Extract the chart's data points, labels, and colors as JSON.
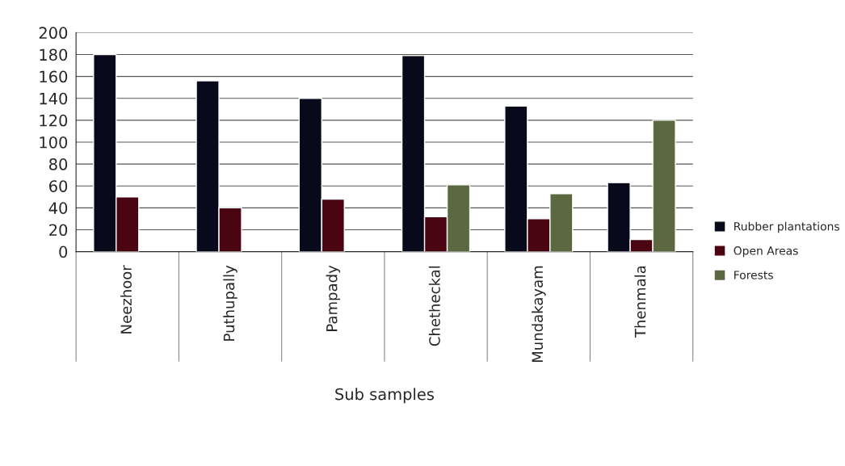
{
  "chart_data": {
    "type": "bar",
    "xlabel": "Sub samples",
    "categories": [
      "Neezhoor",
      "Puthupally",
      "Pampady",
      "Chetheckal",
      "Mundakayam",
      "Thenmala"
    ],
    "series": [
      {
        "name": "Rubber plantations",
        "color": "#08091a",
        "values": [
          180,
          156,
          140,
          179,
          133,
          63
        ]
      },
      {
        "name": "Open Areas",
        "color": "#4a0412",
        "values": [
          50,
          40,
          48,
          32,
          30,
          11
        ]
      },
      {
        "name": "Forests",
        "color": "#5b6840",
        "values": [
          null,
          null,
          null,
          61,
          53,
          120
        ]
      }
    ],
    "ylim": [
      0,
      200
    ],
    "yticks": [
      0,
      20,
      40,
      60,
      80,
      100,
      120,
      140,
      160,
      180,
      200
    ],
    "grid": "y",
    "legend": "right"
  }
}
